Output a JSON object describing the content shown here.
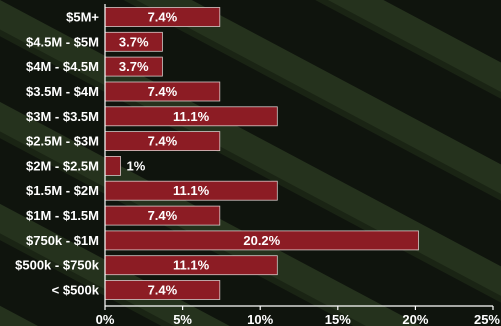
{
  "chart_data": {
    "type": "bar",
    "orientation": "horizontal",
    "categories": [
      "$5M+",
      "$4.5M - $5M",
      "$4M - $4.5M",
      "$3.5M - $4M",
      "$3M - $3.5M",
      "$2.5M - $3M",
      "$2M - $2.5M",
      "$1.5M - $2M",
      "$1M - $1.5M",
      "$750k - $1M",
      "$500k - $750k",
      "< $500k"
    ],
    "values": [
      7.4,
      3.7,
      3.7,
      7.4,
      11.1,
      7.4,
      1,
      11.1,
      7.4,
      20.2,
      11.1,
      7.4
    ],
    "data_labels": [
      "7.4%",
      "3.7%",
      "3.7%",
      "7.4%",
      "11.1%",
      "7.4%",
      "1%",
      "11.1%",
      "7.4%",
      "20.2%",
      "11.1%",
      "7.4%"
    ],
    "xlim": [
      0,
      25
    ],
    "x_ticks": [
      0,
      5,
      10,
      15,
      20,
      25
    ],
    "x_tick_labels": [
      "0%",
      "5%",
      "10%",
      "15%",
      "20%",
      "25%"
    ],
    "title": "",
    "xlabel": "",
    "ylabel": "",
    "grid": false,
    "legend": "none",
    "colors": {
      "bar": "#8c1c24",
      "bar_edge": "#d8c8c8",
      "text": "#ffffff",
      "axis": "#ffffff",
      "background": "#0e120c",
      "texture_dark": "#121a10",
      "texture_light": "#2c3a22"
    }
  }
}
